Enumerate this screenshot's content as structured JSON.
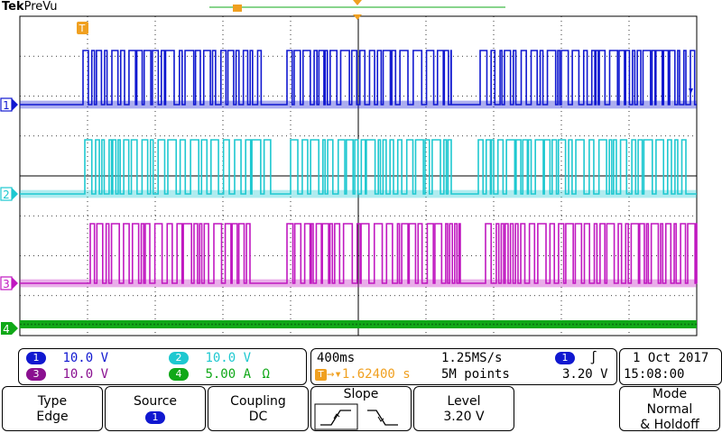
{
  "brand": {
    "name_bold": "Tek",
    "name_rest": "PreVu"
  },
  "markers": {
    "trigger_label": "T"
  },
  "channels": [
    {
      "id": "1",
      "scale": "10.0 V",
      "color": "#1018d0",
      "unit_icon": ""
    },
    {
      "id": "2",
      "scale": "10.0 V",
      "color": "#1ec8d0",
      "unit_icon": ""
    },
    {
      "id": "3",
      "scale": "10.0 V",
      "color": "#c018c0",
      "unit_icon": ""
    },
    {
      "id": "4",
      "scale": "5.00 A",
      "color": "#10a818",
      "unit_icon": "Ω"
    }
  ],
  "acquisition": {
    "timebase": "400ms",
    "sample_rate": "1.25MS/s",
    "trigger_position": "1.62400 s",
    "record_length": "5M points"
  },
  "trigger": {
    "source": "1",
    "slope_symbol": "∫",
    "level": "3.20 V"
  },
  "datetime": {
    "date": "1 Oct  2017",
    "time": "15:08:00"
  },
  "menu": {
    "type": {
      "title": "Type",
      "value": "Edge"
    },
    "source": {
      "title": "Source",
      "value": "1"
    },
    "coupling": {
      "title": "Coupling",
      "value": "DC"
    },
    "slope": {
      "title": "Slope"
    },
    "level": {
      "title": "Level",
      "value": "3.20 V"
    },
    "mode": {
      "title": "Mode",
      "value1": "Normal",
      "value2": "& Holdoff"
    }
  },
  "colors": {
    "trigger_orange": "#f0a020",
    "grid": "#000000"
  }
}
